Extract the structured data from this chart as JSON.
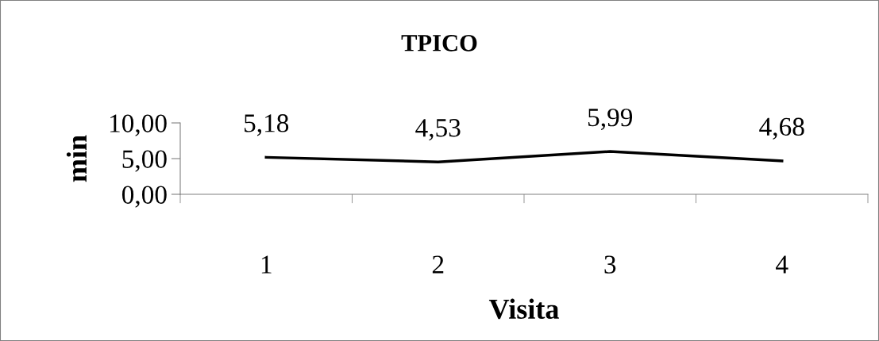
{
  "chart_data": {
    "type": "line",
    "title": "TPICO",
    "xlabel": "Visita",
    "ylabel": "min",
    "categories": [
      "1",
      "2",
      "3",
      "4"
    ],
    "series": [
      {
        "color": "#000000",
        "values": [
          5.18,
          4.53,
          5.99,
          4.68
        ],
        "value_labels": [
          "5,18",
          "4,53",
          "5,99",
          "4,68"
        ]
      }
    ],
    "ylim": [
      0,
      10
    ],
    "yticks": [
      {
        "value": 0,
        "label": "0,00"
      },
      {
        "value": 5,
        "label": "5,00"
      },
      {
        "value": 10,
        "label": "10,00"
      }
    ],
    "grid": false,
    "legend": false,
    "marker": "none",
    "line_style": "solid"
  }
}
